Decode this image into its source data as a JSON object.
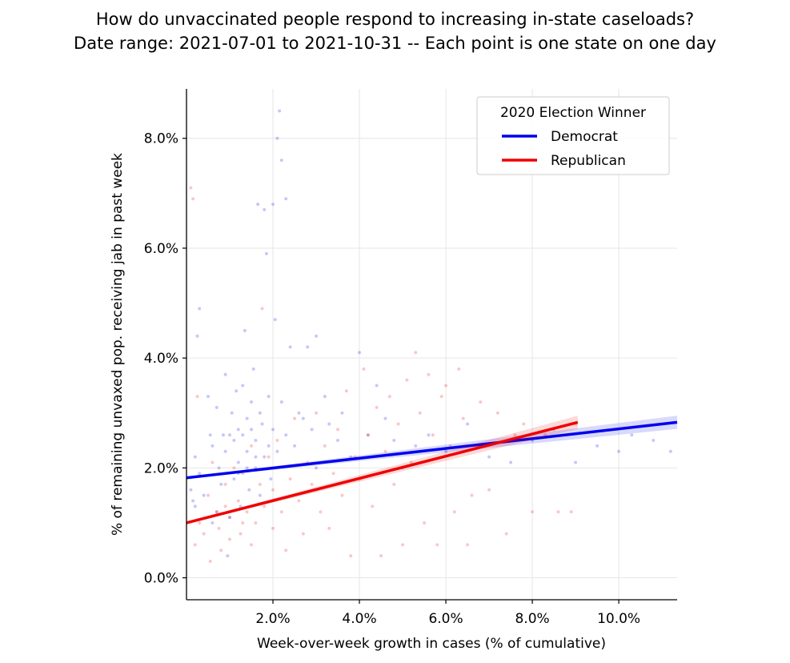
{
  "chart_data": {
    "type": "scatter",
    "title": "How do unvaccinated people respond to increasing in-state caseloads?",
    "subtitle": "Date range: 2021-07-01 to 2021-10-31 -- Each point is one state on one day",
    "xlabel": "Week-over-week growth in cases (% of cumulative)",
    "ylabel": "% of remaining unvaxed pop. receiving jab in past week",
    "xlim": [
      0.0,
      11.35
    ],
    "ylim": [
      -0.4,
      8.9
    ],
    "x_ticks": [
      2.0,
      4.0,
      6.0,
      8.0,
      10.0
    ],
    "x_tick_labels": [
      "2.0%",
      "4.0%",
      "6.0%",
      "8.0%",
      "10.0%"
    ],
    "y_ticks": [
      0.0,
      2.0,
      4.0,
      6.0,
      8.0
    ],
    "y_tick_labels": [
      "0.0%",
      "2.0%",
      "4.0%",
      "6.0%",
      "8.0%"
    ],
    "grid": true,
    "legend": {
      "title": "2020 Election Winner",
      "placement": "top-right"
    },
    "series": [
      {
        "name": "Democrat",
        "color": "#0000ee",
        "trend_line": {
          "x": [
            0.0,
            11.35
          ],
          "y": [
            1.82,
            2.83
          ]
        },
        "points": [
          [
            0.1,
            1.6
          ],
          [
            0.15,
            1.4
          ],
          [
            0.2,
            1.3
          ],
          [
            0.2,
            2.2
          ],
          [
            0.25,
            4.4
          ],
          [
            0.3,
            4.9
          ],
          [
            0.3,
            1.9
          ],
          [
            0.4,
            1.5
          ],
          [
            0.5,
            3.3
          ],
          [
            0.55,
            2.6
          ],
          [
            0.6,
            1.0
          ],
          [
            0.6,
            2.4
          ],
          [
            0.7,
            3.1
          ],
          [
            0.75,
            2.0
          ],
          [
            0.8,
            1.7
          ],
          [
            0.85,
            2.6
          ],
          [
            0.9,
            3.7
          ],
          [
            0.9,
            2.3
          ],
          [
            0.95,
            0.4
          ],
          [
            1.0,
            2.6
          ],
          [
            1.0,
            1.1
          ],
          [
            1.05,
            3.0
          ],
          [
            1.1,
            2.5
          ],
          [
            1.1,
            1.8
          ],
          [
            1.15,
            3.4
          ],
          [
            1.2,
            2.7
          ],
          [
            1.2,
            2.1
          ],
          [
            1.25,
            1.3
          ],
          [
            1.3,
            3.5
          ],
          [
            1.3,
            2.6
          ],
          [
            1.35,
            4.5
          ],
          [
            1.4,
            2.9
          ],
          [
            1.4,
            2.3
          ],
          [
            1.45,
            1.6
          ],
          [
            1.5,
            3.2
          ],
          [
            1.5,
            2.7
          ],
          [
            1.55,
            3.8
          ],
          [
            1.6,
            2.5
          ],
          [
            1.6,
            2.0
          ],
          [
            1.65,
            6.8
          ],
          [
            1.7,
            3.0
          ],
          [
            1.7,
            1.5
          ],
          [
            1.75,
            2.8
          ],
          [
            1.8,
            2.2
          ],
          [
            1.8,
            6.7
          ],
          [
            1.85,
            5.9
          ],
          [
            1.9,
            3.3
          ],
          [
            1.9,
            2.4
          ],
          [
            1.95,
            1.8
          ],
          [
            2.0,
            6.8
          ],
          [
            2.0,
            2.7
          ],
          [
            2.05,
            4.7
          ],
          [
            2.1,
            8.0
          ],
          [
            2.1,
            2.3
          ],
          [
            2.15,
            8.5
          ],
          [
            2.2,
            7.6
          ],
          [
            2.2,
            3.2
          ],
          [
            2.3,
            6.9
          ],
          [
            2.3,
            2.6
          ],
          [
            2.4,
            4.2
          ],
          [
            2.5,
            2.4
          ],
          [
            2.6,
            3.0
          ],
          [
            2.7,
            2.9
          ],
          [
            2.8,
            4.2
          ],
          [
            2.9,
            2.7
          ],
          [
            3.0,
            4.4
          ],
          [
            3.0,
            2.0
          ],
          [
            3.2,
            3.3
          ],
          [
            3.3,
            2.8
          ],
          [
            3.5,
            2.5
          ],
          [
            3.6,
            3.0
          ],
          [
            3.8,
            2.2
          ],
          [
            4.0,
            4.1
          ],
          [
            4.2,
            2.6
          ],
          [
            4.4,
            3.5
          ],
          [
            4.6,
            2.9
          ],
          [
            4.8,
            2.5
          ],
          [
            5.0,
            2.0
          ],
          [
            5.3,
            2.4
          ],
          [
            5.6,
            2.6
          ],
          [
            6.0,
            2.3
          ],
          [
            6.5,
            2.8
          ],
          [
            7.0,
            2.2
          ],
          [
            7.5,
            2.1
          ],
          [
            8.0,
            2.5
          ],
          [
            8.5,
            2.7
          ],
          [
            9.0,
            2.1
          ],
          [
            9.5,
            2.4
          ],
          [
            10.0,
            2.3
          ],
          [
            10.3,
            2.6
          ],
          [
            10.8,
            2.5
          ],
          [
            11.2,
            2.3
          ],
          [
            1.2,
            1.9
          ],
          [
            1.4,
            2.0
          ],
          [
            1.6,
            2.2
          ],
          [
            0.7,
            1.2
          ]
        ]
      },
      {
        "name": "Republican",
        "color": "#ee0000",
        "trend_line": {
          "x": [
            0.0,
            9.05
          ],
          "y": [
            1.0,
            2.83
          ]
        },
        "points": [
          [
            0.1,
            7.1
          ],
          [
            0.15,
            6.9
          ],
          [
            0.2,
            0.6
          ],
          [
            0.25,
            3.3
          ],
          [
            0.3,
            1.0
          ],
          [
            0.4,
            0.8
          ],
          [
            0.5,
            1.5
          ],
          [
            0.55,
            0.3
          ],
          [
            0.6,
            2.1
          ],
          [
            0.7,
            1.2
          ],
          [
            0.75,
            0.9
          ],
          [
            0.8,
            0.5
          ],
          [
            0.9,
            1.7
          ],
          [
            1.0,
            1.1
          ],
          [
            1.0,
            0.7
          ],
          [
            1.1,
            2.0
          ],
          [
            1.2,
            1.4
          ],
          [
            1.25,
            0.8
          ],
          [
            1.3,
            1.9
          ],
          [
            1.4,
            1.2
          ],
          [
            1.5,
            2.4
          ],
          [
            1.5,
            0.6
          ],
          [
            1.6,
            1.0
          ],
          [
            1.7,
            1.7
          ],
          [
            1.75,
            4.9
          ],
          [
            1.8,
            1.3
          ],
          [
            1.9,
            2.2
          ],
          [
            2.0,
            0.9
          ],
          [
            2.0,
            1.6
          ],
          [
            2.1,
            2.5
          ],
          [
            2.2,
            1.2
          ],
          [
            2.3,
            0.5
          ],
          [
            2.4,
            1.8
          ],
          [
            2.5,
            2.9
          ],
          [
            2.6,
            1.4
          ],
          [
            2.7,
            0.8
          ],
          [
            2.8,
            2.1
          ],
          [
            2.9,
            1.7
          ],
          [
            3.0,
            3.0
          ],
          [
            3.1,
            1.2
          ],
          [
            3.2,
            2.4
          ],
          [
            3.3,
            0.9
          ],
          [
            3.4,
            1.9
          ],
          [
            3.5,
            2.7
          ],
          [
            3.6,
            1.5
          ],
          [
            3.7,
            3.4
          ],
          [
            3.8,
            0.4
          ],
          [
            3.9,
            2.2
          ],
          [
            4.0,
            1.8
          ],
          [
            4.1,
            3.8
          ],
          [
            4.2,
            2.6
          ],
          [
            4.3,
            1.3
          ],
          [
            4.4,
            3.1
          ],
          [
            4.5,
            0.4
          ],
          [
            4.6,
            2.3
          ],
          [
            4.7,
            3.3
          ],
          [
            4.8,
            1.7
          ],
          [
            4.9,
            2.8
          ],
          [
            5.0,
            0.6
          ],
          [
            5.1,
            3.6
          ],
          [
            5.2,
            2.1
          ],
          [
            5.3,
            4.1
          ],
          [
            5.4,
            3.0
          ],
          [
            5.5,
            1.0
          ],
          [
            5.6,
            3.7
          ],
          [
            5.7,
            2.6
          ],
          [
            5.8,
            0.6
          ],
          [
            5.9,
            3.3
          ],
          [
            6.0,
            3.5
          ],
          [
            6.1,
            2.4
          ],
          [
            6.2,
            1.2
          ],
          [
            6.3,
            3.8
          ],
          [
            6.4,
            2.9
          ],
          [
            6.5,
            0.6
          ],
          [
            6.6,
            1.5
          ],
          [
            6.8,
            3.2
          ],
          [
            7.0,
            1.6
          ],
          [
            7.2,
            3.0
          ],
          [
            7.4,
            0.8
          ],
          [
            7.6,
            2.6
          ],
          [
            7.8,
            2.8
          ],
          [
            8.0,
            1.2
          ],
          [
            8.3,
            2.6
          ],
          [
            8.6,
            1.2
          ],
          [
            8.9,
            1.2
          ],
          [
            9.0,
            2.8
          ],
          [
            0.9,
            1.3
          ],
          [
            1.3,
            1.0
          ]
        ]
      }
    ]
  }
}
